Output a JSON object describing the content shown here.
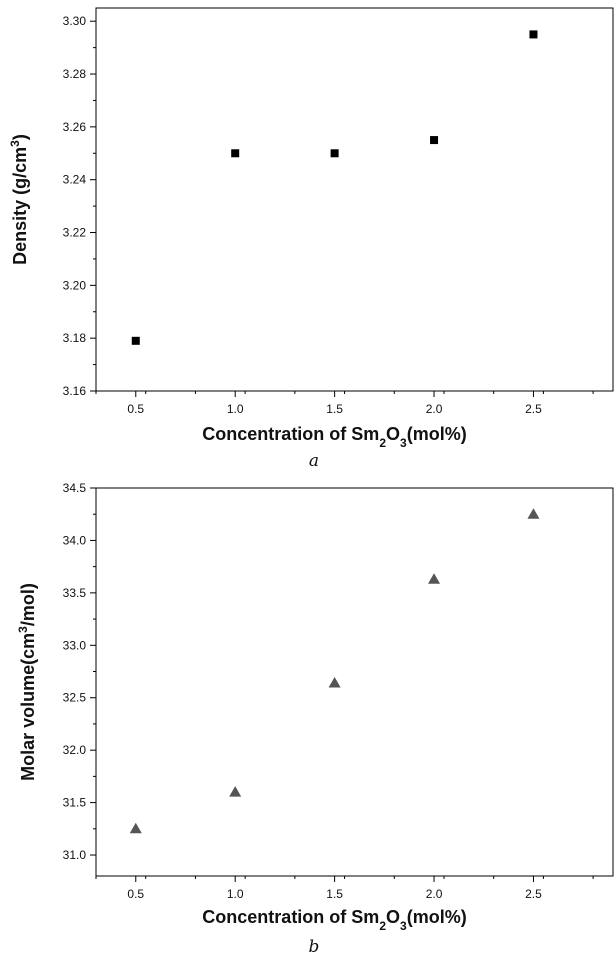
{
  "chart_data": [
    {
      "type": "scatter",
      "marker": "square",
      "color": "#000000",
      "x": [
        0.5,
        1.0,
        1.5,
        2.0,
        2.5
      ],
      "y": [
        3.179,
        3.25,
        3.25,
        3.255,
        3.295
      ],
      "xlim": [
        0.3,
        2.9
      ],
      "ylim": [
        3.16,
        3.305
      ],
      "x_ticks": [
        "0.5",
        "1.0",
        "1.5",
        "2.0",
        "2.5"
      ],
      "y_ticks": [
        "3.16",
        "3.18",
        "3.20",
        "3.22",
        "3.24",
        "3.26",
        "3.28",
        "3.30"
      ],
      "xlabel": "Concentration of Sm2O3(mol%)",
      "xlabel_parts": {
        "before": "Concentration of Sm",
        "sub1": "2",
        "mid": "O",
        "sub2": "3",
        "after": "(mol%)"
      },
      "ylabel": "Density (g/cm3)",
      "ylabel_parts": {
        "before": "Density (g/cm",
        "sup": "3",
        "after": ")"
      },
      "caption": "a",
      "grid": false,
      "legend": false
    },
    {
      "type": "scatter",
      "marker": "triangle",
      "color": "#555555",
      "x": [
        0.5,
        1.0,
        1.5,
        2.0,
        2.5
      ],
      "y": [
        31.25,
        31.6,
        32.64,
        33.63,
        34.25
      ],
      "xlim": [
        0.3,
        2.9
      ],
      "ylim": [
        30.8,
        34.5
      ],
      "x_ticks": [
        "0.5",
        "1.0",
        "1.5",
        "2.0",
        "2.5"
      ],
      "y_ticks": [
        "31.0",
        "31.5",
        "32.0",
        "32.5",
        "33.0",
        "33.5",
        "34.0",
        "34.5"
      ],
      "xlabel": "Concentration of Sm2O3(mol%)",
      "xlabel_parts": {
        "before": "Concentration of Sm",
        "sub1": "2",
        "mid": "O",
        "sub2": "3",
        "after": "(mol%)"
      },
      "ylabel": "Molar volume(cm3/mol)",
      "ylabel_parts": {
        "before": "Molar volume(cm",
        "sup": "3",
        "after": "/mol)"
      },
      "caption": "b",
      "grid": false,
      "legend": false
    }
  ]
}
